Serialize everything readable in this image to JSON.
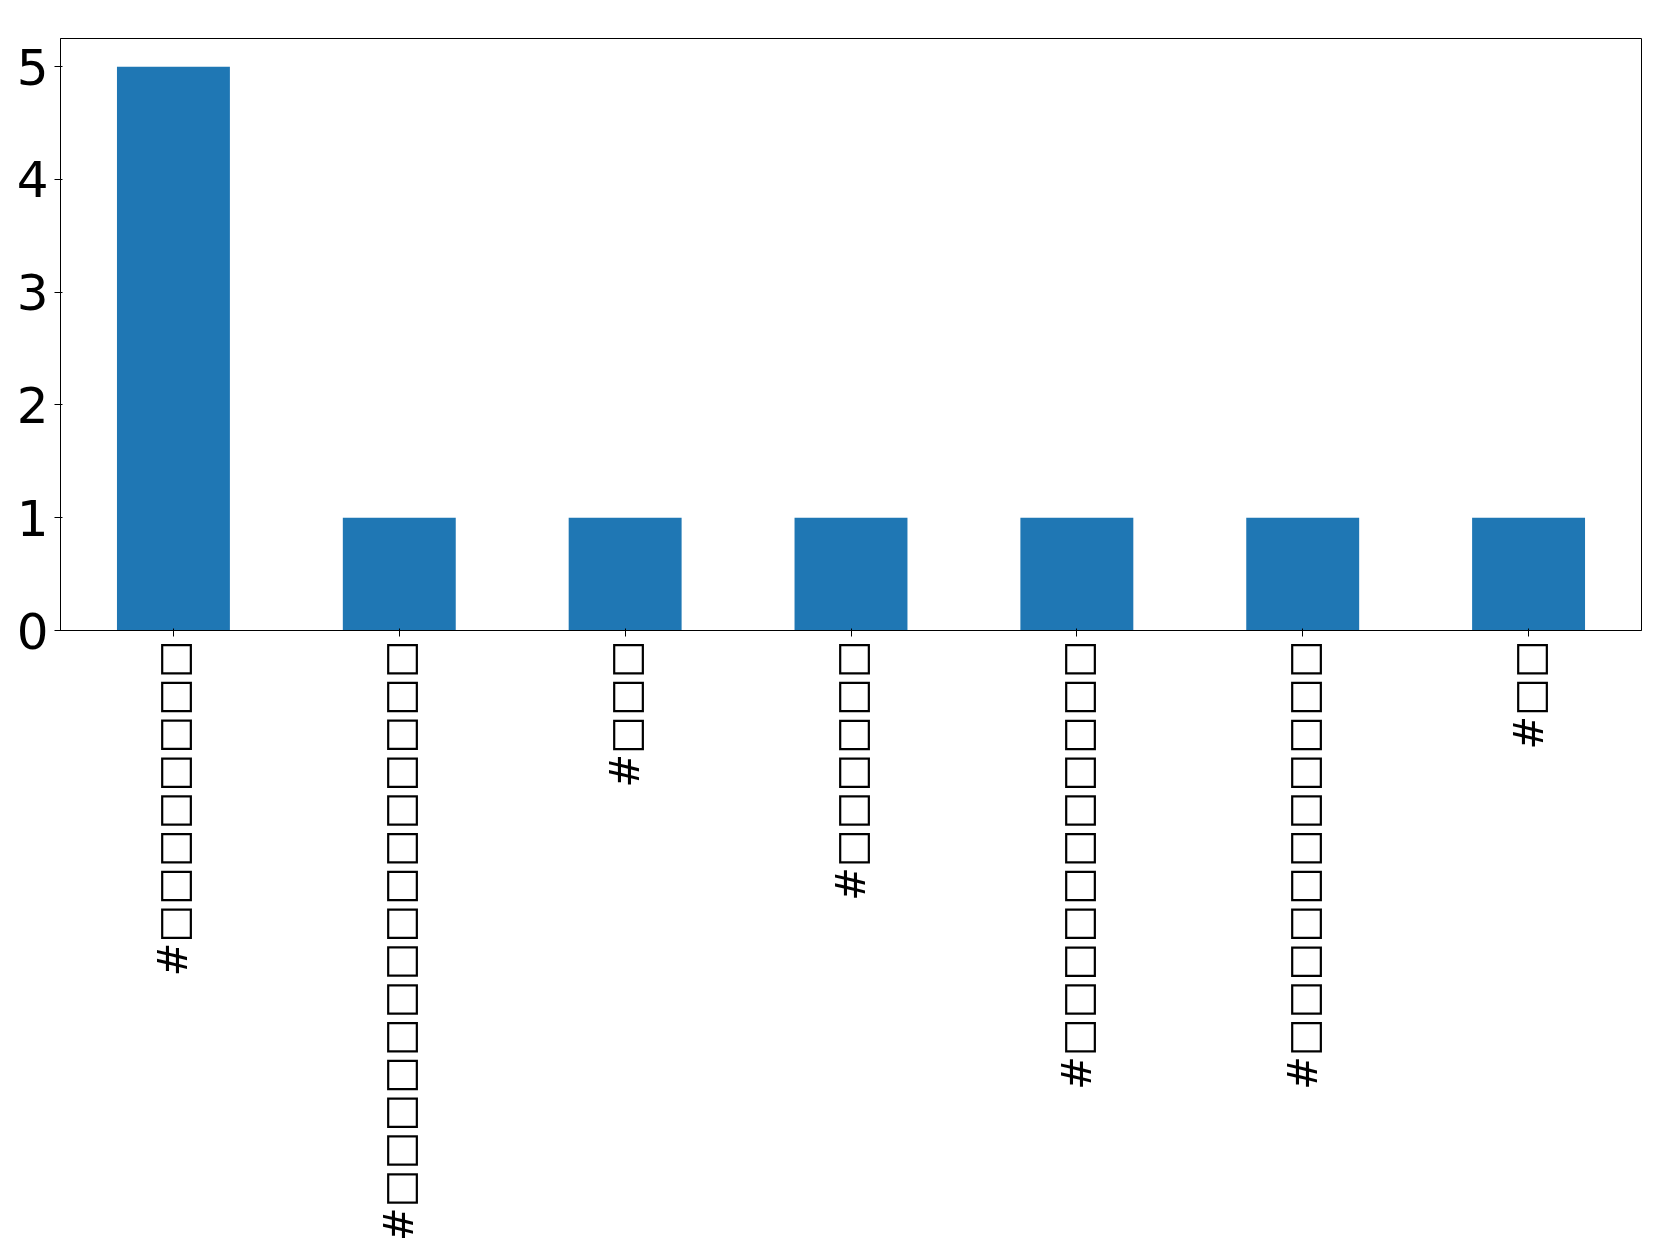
{
  "chart_data": {
    "type": "bar",
    "categories": [
      "#□□□□□□□□",
      "#□□□□□□□□□□□□□□□",
      "#□□□",
      "#□□□□□□",
      "#□□□□□□□□□□□",
      "#□□□□□□□□□□□",
      "#□□"
    ],
    "values": [
      5,
      1,
      1,
      1,
      1,
      1,
      1
    ],
    "color": "#1f77b4",
    "ylim": [
      0,
      5.25
    ],
    "yticks": [
      0,
      1,
      2,
      3,
      4,
      5
    ],
    "grid": false
  }
}
